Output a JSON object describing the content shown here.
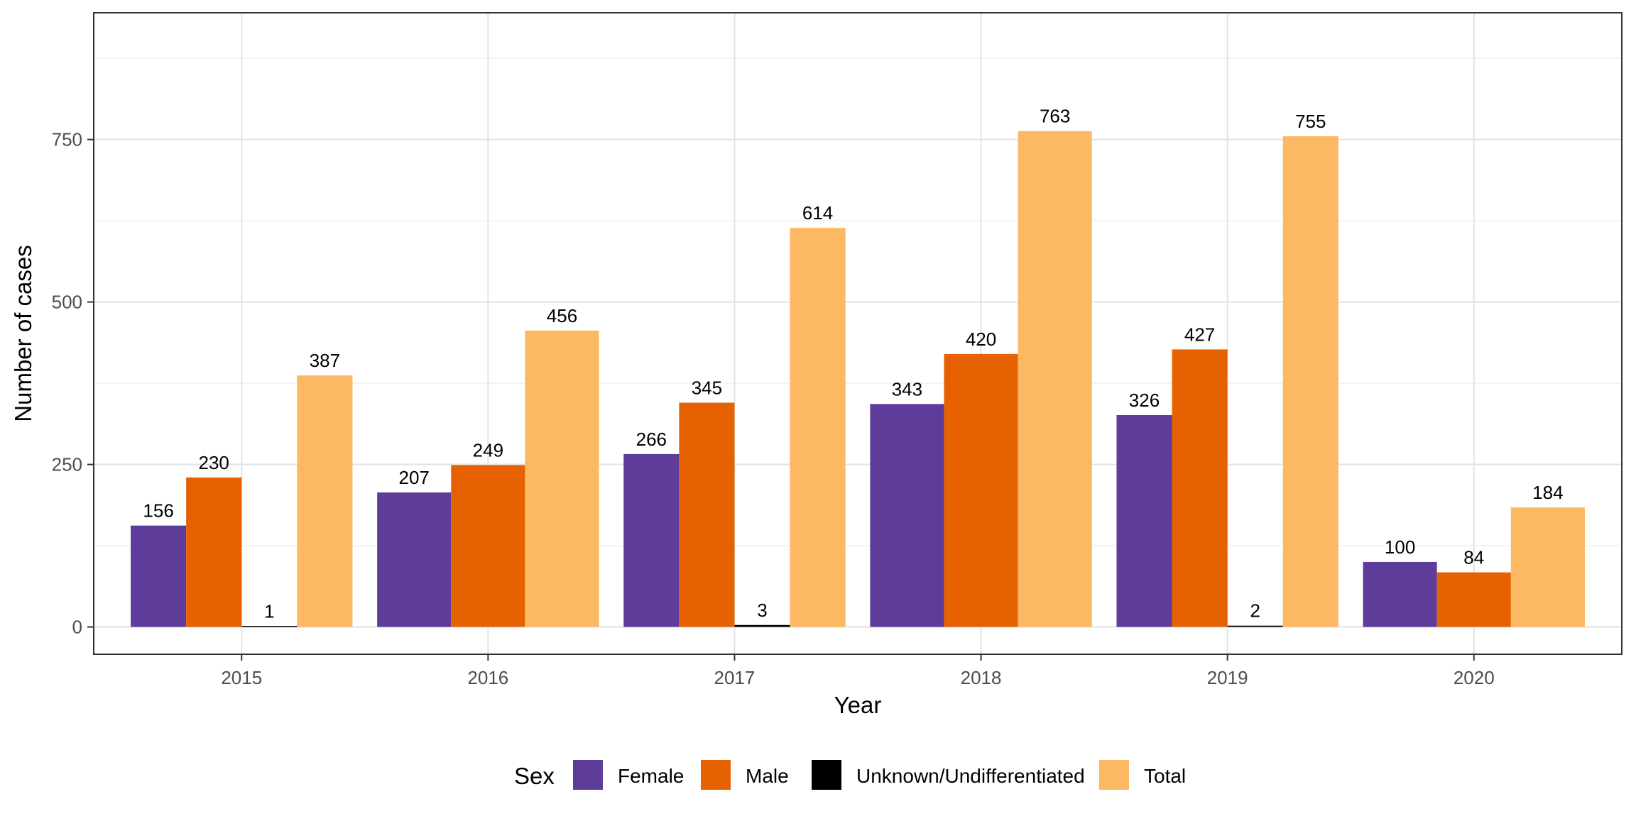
{
  "chart_data": {
    "type": "bar",
    "categories": [
      "2015",
      "2016",
      "2017",
      "2018",
      "2019",
      "2020"
    ],
    "series": [
      {
        "name": "Female",
        "color": "#5e3c99",
        "values": [
          156,
          207,
          266,
          343,
          326,
          100
        ]
      },
      {
        "name": "Male",
        "color": "#e66101",
        "values": [
          230,
          249,
          345,
          420,
          427,
          84
        ]
      },
      {
        "name": "Unknown/Undifferentiated",
        "color": "#000000",
        "values": [
          1,
          null,
          3,
          null,
          2,
          null
        ]
      },
      {
        "name": "Total",
        "color": "#fdb863",
        "values": [
          387,
          456,
          614,
          763,
          755,
          184
        ]
      }
    ],
    "xlabel": "Year",
    "ylabel": "Number of cases",
    "ylim": [
      -42,
      945
    ],
    "yticks": [
      0,
      250,
      500,
      750
    ],
    "yticks_labels": [
      "0",
      "250",
      "500",
      "750"
    ],
    "grid": true,
    "legend": {
      "title": "Sex",
      "placement": "bottom"
    }
  }
}
